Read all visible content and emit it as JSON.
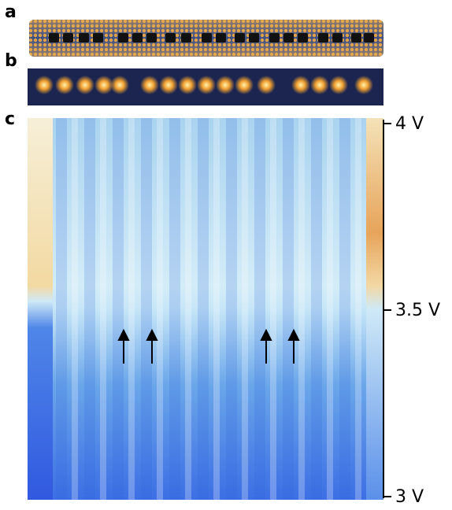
{
  "panels": [
    {
      "label": "a"
    },
    {
      "label": "b"
    },
    {
      "label": "c"
    }
  ],
  "axis": {
    "lim": [
      3,
      4
    ],
    "ticks": [
      {
        "value": 4,
        "label": "4 V"
      },
      {
        "value": 3.5,
        "label": "3.5 V"
      },
      {
        "value": 3,
        "label": "3 V"
      }
    ]
  }
}
